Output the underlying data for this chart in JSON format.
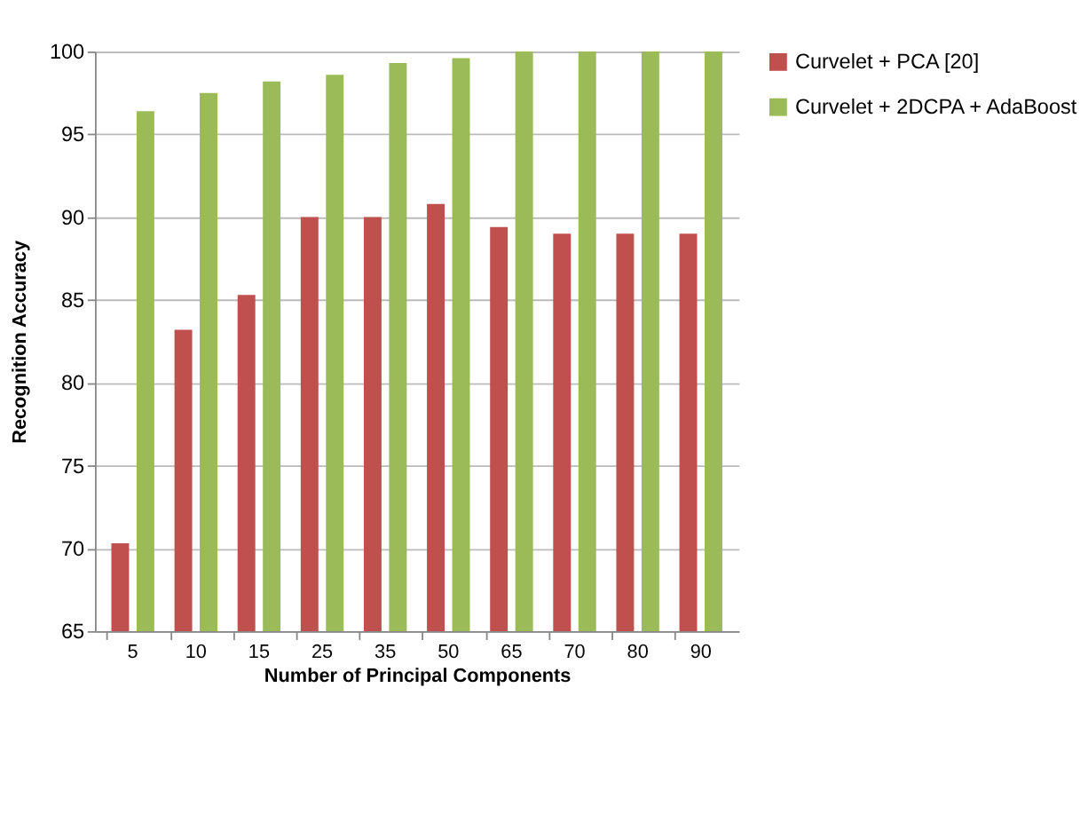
{
  "chart_data": {
    "type": "bar",
    "xlabel": "Number of Principal Components",
    "ylabel": "Recognition Accuracy",
    "categories": [
      "5",
      "10",
      "15",
      "25",
      "35",
      "50",
      "65",
      "70",
      "80",
      "90"
    ],
    "series": [
      {
        "name": "Curvelet + PCA [20]",
        "color": "#c0504d",
        "values": [
          70.3,
          83.2,
          85.3,
          90.0,
          90.0,
          90.8,
          89.4,
          89.0,
          89.0,
          89.0
        ]
      },
      {
        "name": "Curvelet + 2DCPA + AdaBoost",
        "color": "#9bbb59",
        "values": [
          96.4,
          97.5,
          98.2,
          98.6,
          99.3,
          99.6,
          100,
          100,
          100,
          100
        ]
      }
    ],
    "ylim": [
      65,
      100
    ],
    "yticks": [
      65,
      70,
      75,
      80,
      85,
      90,
      95,
      100
    ],
    "grid": "y",
    "legend": "top right"
  }
}
